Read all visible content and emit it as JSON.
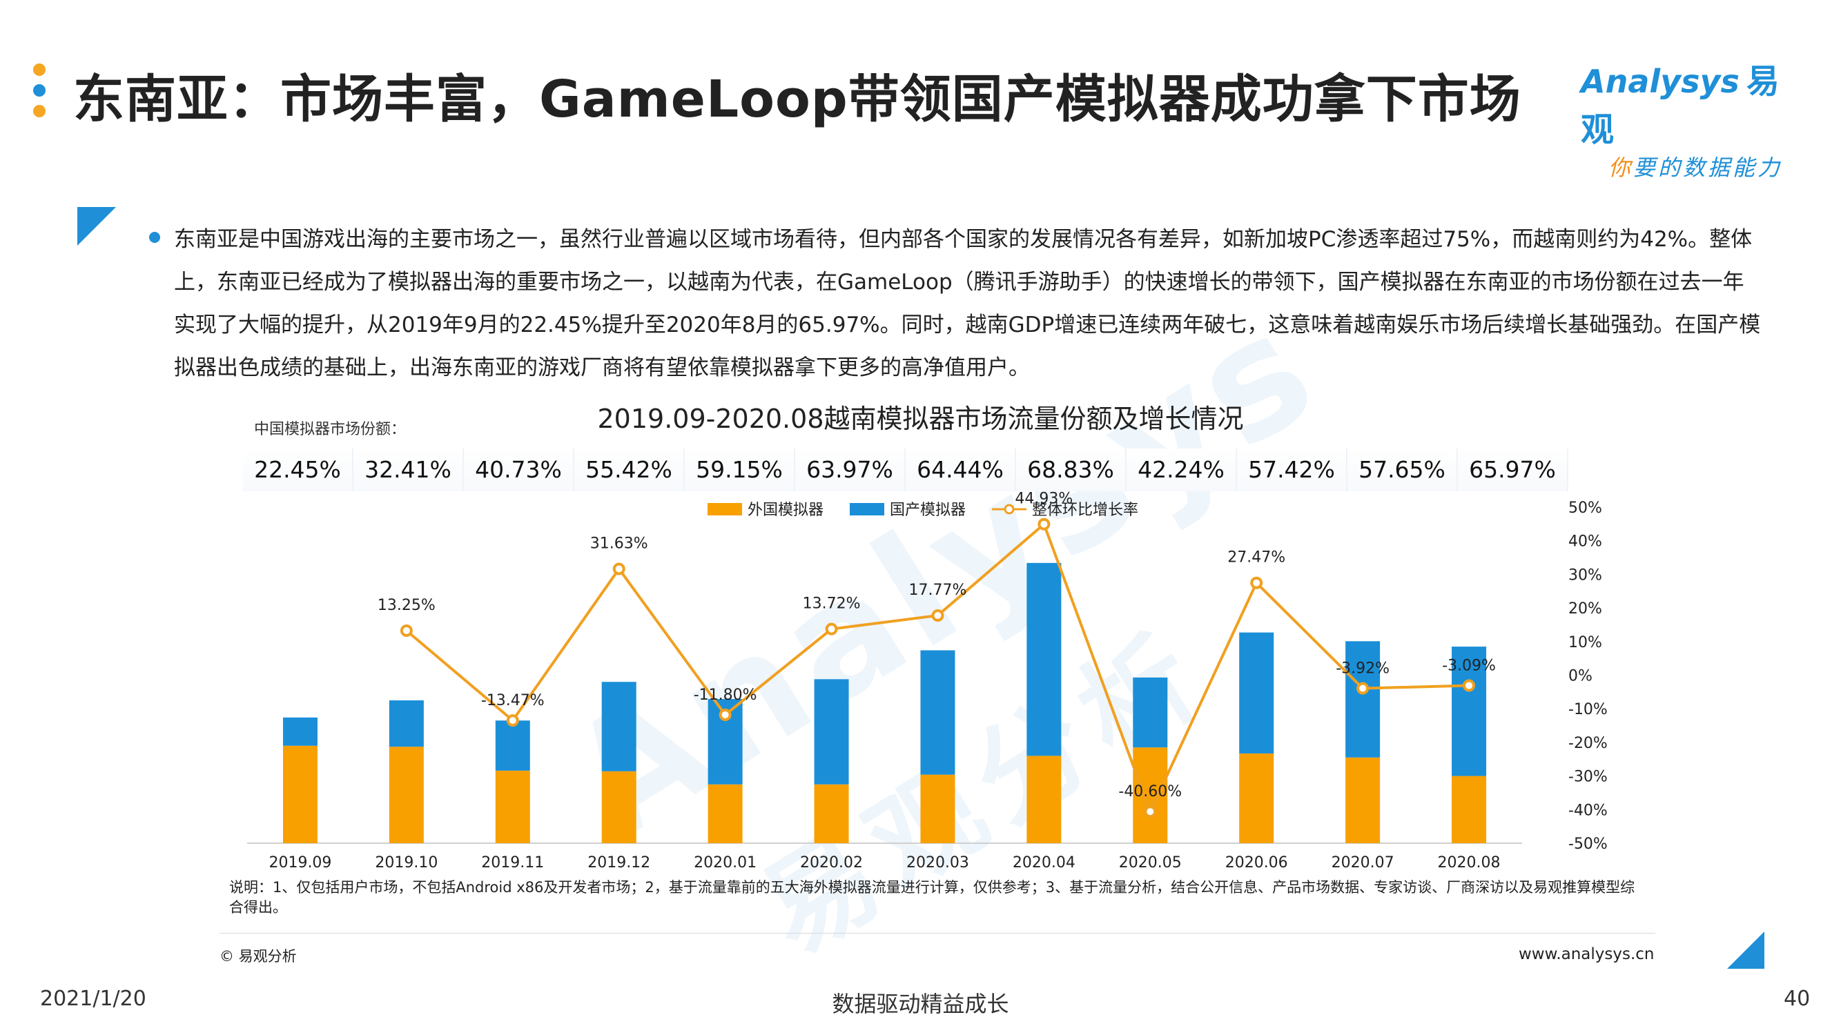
{
  "page": {
    "title": "东南亚：市场丰富，GameLoop带领国产模拟器成功拿下市场",
    "logo_en": "Analysys",
    "logo_zh": "易观",
    "logo_slogan_1": "你",
    "logo_slogan_2": "要的数据能力",
    "paragraph": "东南亚是中国游戏出海的主要市场之一，虽然行业普遍以区域市场看待，但内部各个国家的发展情况各有差异，如新加坡PC渗透率超过75%，而越南则约为42%。整体上，东南亚已经成为了模拟器出海的重要市场之一，以越南为代表，在GameLoop（腾讯手游助手）的快速增长的带领下，国产模拟器在东南亚的市场份额在过去一年实现了大幅的提升，从2019年9月的22.45%提升至2020年8月的65.97%。同时，越南GDP增速已连续两年破七，这意味着越南娱乐市场后续增长基础强劲。在国产模拟器出色成绩的基础上，出海东南亚的游戏厂商将有望依靠模拟器拿下更多的高净值用户。",
    "share_label": "中国模拟器市场份额：",
    "shares": [
      "22.45%",
      "32.41%",
      "40.73%",
      "55.42%",
      "59.15%",
      "63.97%",
      "64.44%",
      "68.83%",
      "42.24%",
      "57.42%",
      "57.65%",
      "65.97%"
    ],
    "note": "说明：1、仅包括用户市场，不包括Android x86及开发者市场；2，基于流量靠前的五大海外模拟器流量进行计算，仅供参考；3、基于流量分析，结合公开信息、产品市场数据、专家访谈、厂商深访以及易观推算模型综合得出。",
    "source": "© 易观分析",
    "website": "www.analysys.cn",
    "footer_date": "2021/1/20",
    "footer_slogan": "数据驱动精益成长",
    "footer_page": "40",
    "watermark": "Analysys",
    "watermark_zh": "易观分析"
  },
  "colors": {
    "foreign": "#f7a000",
    "domestic": "#1a8fd8",
    "growth": "#f0a020",
    "accent": "#1f8fd8",
    "dot_orange": "#f5a623",
    "dot_blue": "#1f8fd8"
  },
  "chart_data": {
    "type": "bar",
    "title": "2019.09-2020.08越南模拟器市场流量份额及增长情况",
    "categories": [
      "2019.09",
      "2019.10",
      "2019.11",
      "2019.12",
      "2020.01",
      "2020.02",
      "2020.03",
      "2020.04",
      "2020.05",
      "2020.06",
      "2020.07",
      "2020.08"
    ],
    "stacked": true,
    "series": [
      {
        "name": "外国模拟器",
        "kind": "bar",
        "color": "#f7a000",
        "values": [
          29.0,
          28.7,
          21.6,
          21.4,
          17.5,
          17.5,
          20.4,
          26.0,
          28.5,
          26.7,
          25.5,
          20.0
        ]
      },
      {
        "name": "国产模拟器",
        "kind": "bar",
        "color": "#1a8fd8",
        "values": [
          8.4,
          13.8,
          14.9,
          26.6,
          25.4,
          31.3,
          37.0,
          57.4,
          20.8,
          36.0,
          34.6,
          38.5
        ]
      },
      {
        "name": "整体环比增长率",
        "kind": "line",
        "axis": "right",
        "color": "#f0a020",
        "values": [
          null,
          13.25,
          -13.47,
          31.63,
          -11.8,
          13.72,
          17.77,
          44.93,
          -40.6,
          27.47,
          -3.92,
          -3.09
        ],
        "labels": [
          "",
          "13.25%",
          "-13.47%",
          "31.63%",
          "-11.80%",
          "13.72%",
          "17.77%",
          "44.93%",
          "-40.60%",
          "27.47%",
          "-3.92%",
          "-3.09%"
        ]
      }
    ],
    "left_ylim": [
      0,
      100
    ],
    "right_ylim": [
      -50,
      50
    ],
    "right_ticks": [
      "50%",
      "40%",
      "30%",
      "20%",
      "10%",
      "0%",
      "-10%",
      "-20%",
      "-30%",
      "-40%",
      "-50%"
    ],
    "legend": "top-center",
    "grid": false
  }
}
